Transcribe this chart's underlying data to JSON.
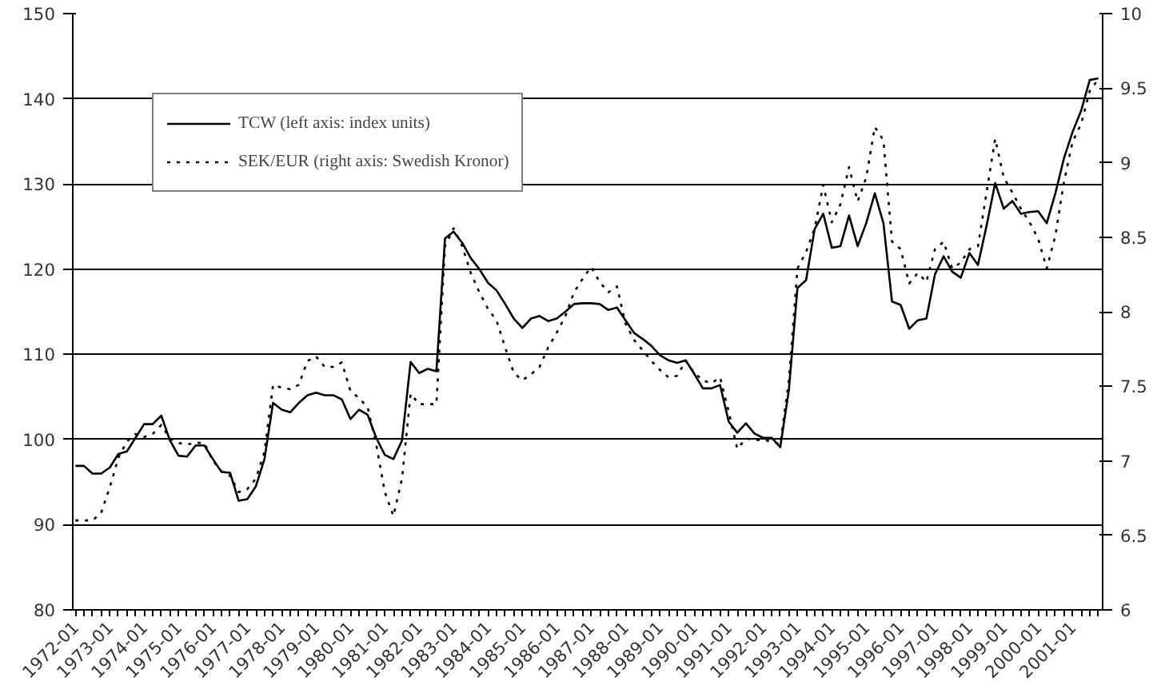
{
  "chart_data": {
    "type": "line",
    "categories": [
      "1972-01",
      null,
      null,
      null,
      "1973-01",
      null,
      null,
      null,
      "1974-01",
      null,
      null,
      null,
      "1975-01",
      null,
      null,
      null,
      "1976-01",
      null,
      null,
      null,
      "1977-01",
      null,
      null,
      null,
      "1978-01",
      null,
      null,
      null,
      "1979-01",
      null,
      null,
      null,
      "1980-01",
      null,
      null,
      null,
      "1981-01",
      null,
      null,
      null,
      "1982-01",
      null,
      null,
      null,
      "1983-01",
      null,
      null,
      null,
      "1984-01",
      null,
      null,
      null,
      "1985-01",
      null,
      null,
      null,
      "1986-01",
      null,
      null,
      null,
      "1987-01",
      null,
      null,
      null,
      "1988-01",
      null,
      null,
      null,
      "1989-01",
      null,
      null,
      null,
      "1990-01",
      null,
      null,
      null,
      "1991-01",
      null,
      null,
      null,
      "1992-01",
      null,
      null,
      null,
      "1993-01",
      null,
      null,
      null,
      "1994-01",
      null,
      null,
      null,
      "1995-01",
      null,
      null,
      null,
      "1996-01",
      null,
      null,
      null,
      "1997-01",
      null,
      null,
      null,
      "1998-01",
      null,
      null,
      null,
      "1999-01",
      null,
      null,
      null,
      "2000-01",
      null,
      null,
      null,
      "2001-01",
      null,
      null,
      null
    ],
    "ylim": [
      80,
      150
    ],
    "yticks": [
      80,
      90,
      100,
      110,
      120,
      130,
      140,
      150
    ],
    "y2lim": [
      6,
      10
    ],
    "y2ticks": [
      6,
      6.5,
      7,
      7.5,
      8,
      8.5,
      9,
      9.5,
      10
    ],
    "grid": "y",
    "legend": "top left",
    "series": [
      {
        "name": "TCW (left axis: index units)",
        "color": "#000000",
        "line_style": "solid",
        "values": [
          96.9,
          96.9,
          96.0,
          96.0,
          96.7,
          98.3,
          98.6,
          100.2,
          101.8,
          101.8,
          102.8,
          99.9,
          98.1,
          98.0,
          99.3,
          99.3,
          97.7,
          96.2,
          96.1,
          92.8,
          93.0,
          94.5,
          97.7,
          104.3,
          103.5,
          103.2,
          104.3,
          105.2,
          105.5,
          105.2,
          105.2,
          104.7,
          102.4,
          103.5,
          102.9,
          100.2,
          98.2,
          97.7,
          99.9,
          109.1,
          107.8,
          108.3,
          108.0,
          123.6,
          124.4,
          123.1,
          121.3,
          120.0,
          118.4,
          117.5,
          115.9,
          114.2,
          113.1,
          114.2,
          114.5,
          113.9,
          114.2,
          115.0,
          115.9,
          116.0,
          116.0,
          115.9,
          115.2,
          115.5,
          114.0,
          112.5,
          111.8,
          111.0,
          109.9,
          109.3,
          109.0,
          109.3,
          107.7,
          106.0,
          106.0,
          106.4,
          102.1,
          100.8,
          101.9,
          100.7,
          100.2,
          100.2,
          99.1,
          105.8,
          117.8,
          118.7,
          124.7,
          126.5,
          122.5,
          122.7,
          126.3,
          122.7,
          125.4,
          128.9,
          125.4,
          116.2,
          115.8,
          113.0,
          114.0,
          114.2,
          119.4,
          121.5,
          119.7,
          119.0,
          121.9,
          120.5,
          125.1,
          130.1,
          127.1,
          128.0,
          126.5,
          126.7,
          126.8,
          125.4,
          128.9,
          133.0,
          136.1,
          138.6,
          142.2,
          142.4
        ]
      },
      {
        "name": "SEK/EUR (right axis: Swedish Kronor)",
        "color": "#000000",
        "axis": "y2",
        "line_style": "dotted",
        "values": [
          6.6,
          6.6,
          6.6,
          6.65,
          6.82,
          7.02,
          7.13,
          7.18,
          7.16,
          7.18,
          7.24,
          7.15,
          7.12,
          7.11,
          7.12,
          7.12,
          7.0,
          6.93,
          6.9,
          6.79,
          6.81,
          6.88,
          7.06,
          7.51,
          7.49,
          7.48,
          7.51,
          7.67,
          7.7,
          7.63,
          7.63,
          7.66,
          7.47,
          7.42,
          7.36,
          7.11,
          6.79,
          6.63,
          6.88,
          7.45,
          7.38,
          7.38,
          7.38,
          8.44,
          8.56,
          8.44,
          8.26,
          8.13,
          8.02,
          7.94,
          7.76,
          7.59,
          7.54,
          7.58,
          7.63,
          7.76,
          7.86,
          7.97,
          8.13,
          8.22,
          8.3,
          8.2,
          8.13,
          8.17,
          7.92,
          7.81,
          7.74,
          7.67,
          7.61,
          7.56,
          7.57,
          7.67,
          7.59,
          7.54,
          7.52,
          7.56,
          7.33,
          7.08,
          7.15,
          7.14,
          7.14,
          7.13,
          7.11,
          7.54,
          8.29,
          8.4,
          8.56,
          8.85,
          8.6,
          8.72,
          8.97,
          8.74,
          8.9,
          9.24,
          9.15,
          8.47,
          8.42,
          8.19,
          8.26,
          8.2,
          8.42,
          8.47,
          8.29,
          8.33,
          8.42,
          8.44,
          8.8,
          9.16,
          8.9,
          8.8,
          8.69,
          8.6,
          8.49,
          8.29,
          8.51,
          8.87,
          9.14,
          9.26,
          9.48,
          9.56
        ]
      }
    ]
  }
}
